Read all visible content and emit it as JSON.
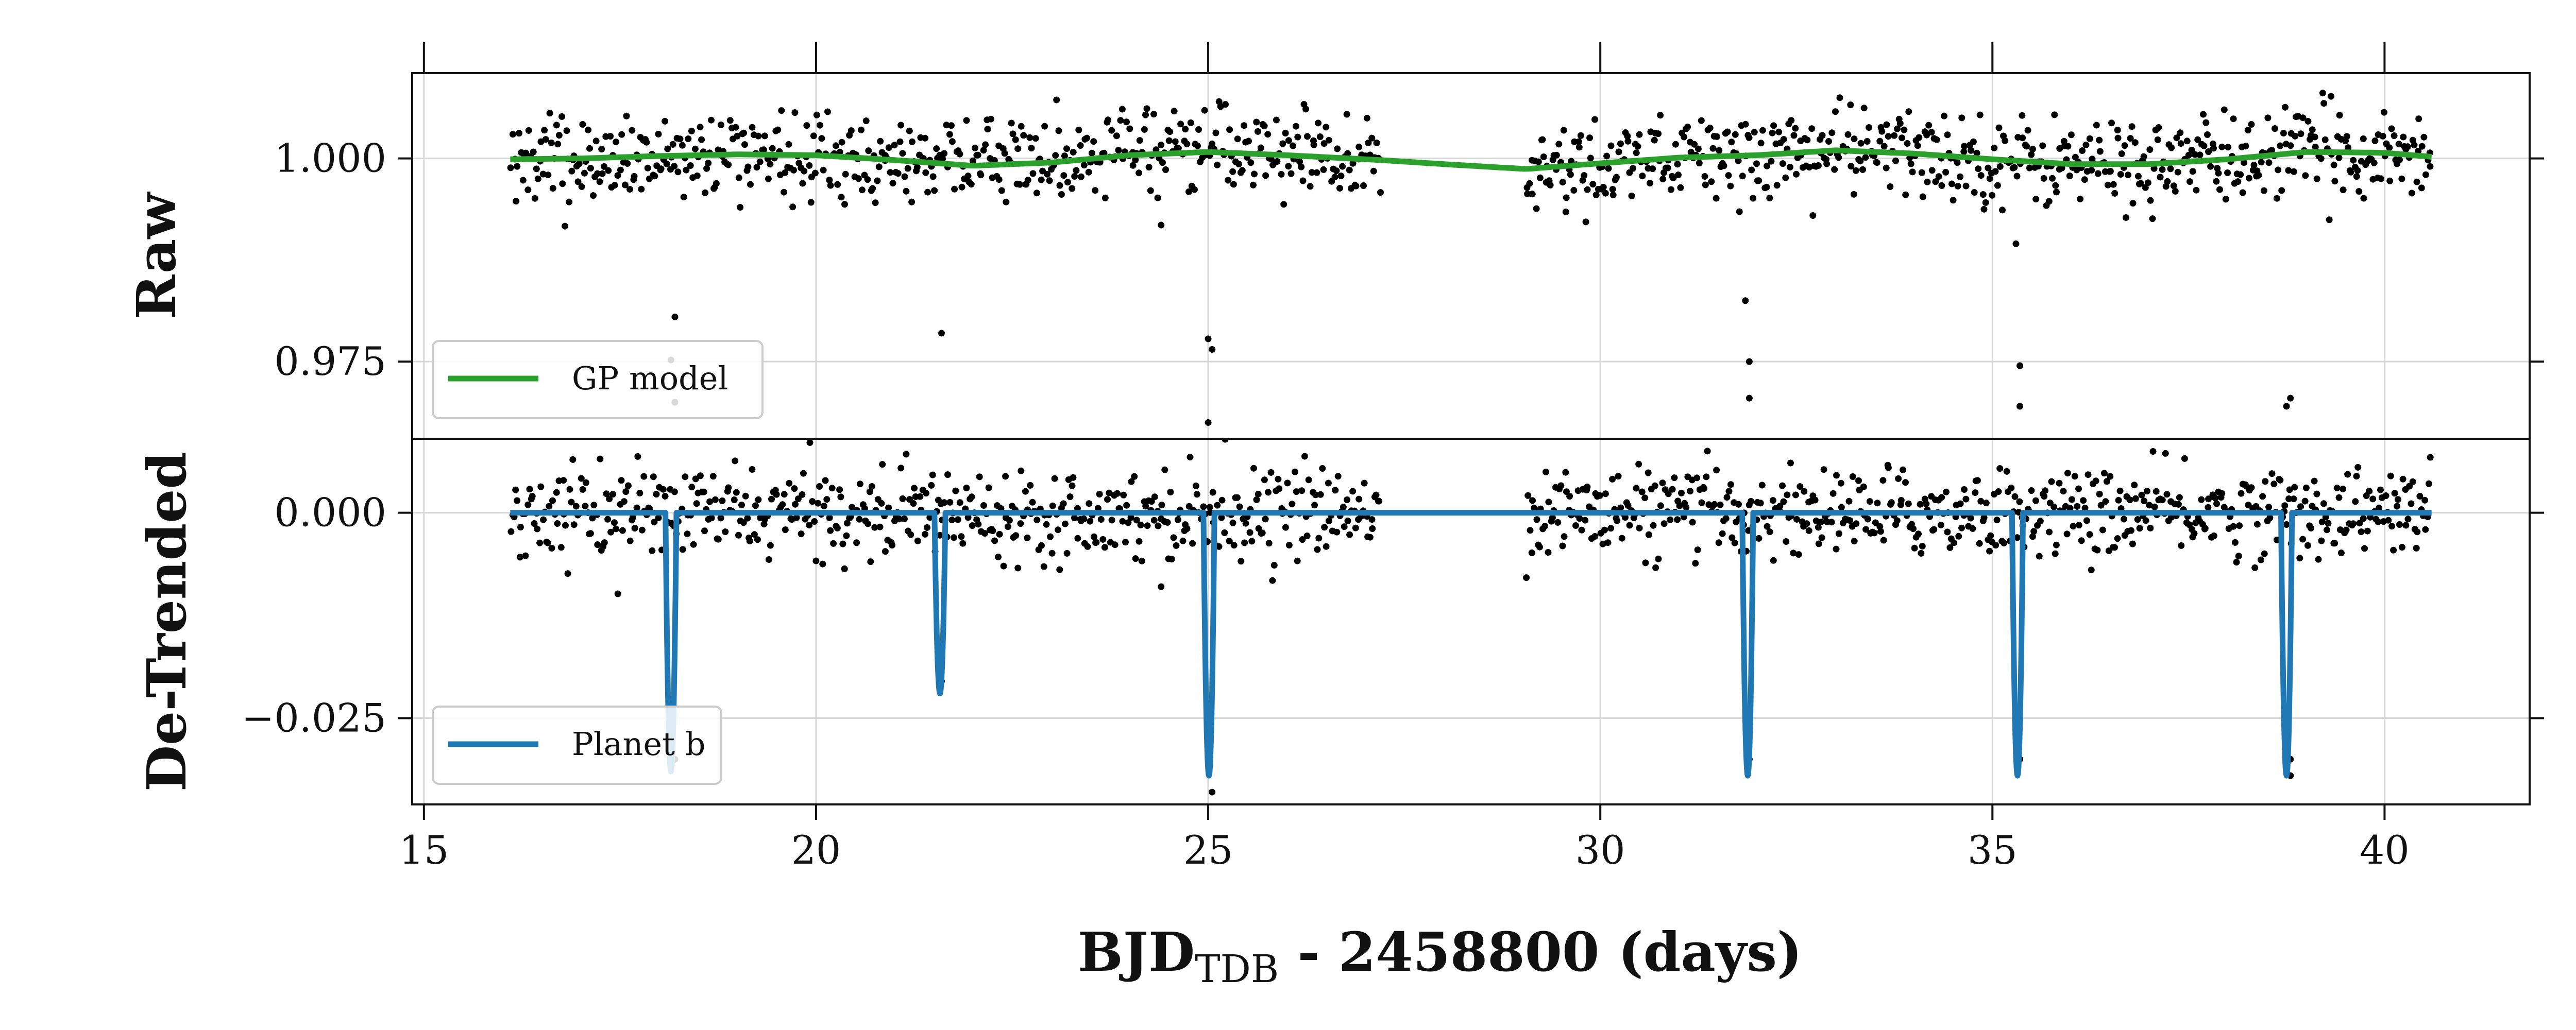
{
  "chart_data": [
    {
      "type": "scatter",
      "panel": "raw",
      "ylabel": "Raw",
      "xlim": [
        14.85,
        41.85
      ],
      "ylim": [
        0.9655,
        1.0105
      ],
      "yticks": [
        0.975,
        1.0
      ],
      "ytick_labels": [
        "0.975",
        "1.000"
      ],
      "xticks": [
        15,
        20,
        25,
        30,
        35,
        40
      ],
      "grid": true,
      "legend_position": "lower-left",
      "series": [
        {
          "name": "",
          "kind": "scatter",
          "color": "#000000",
          "segments": [
            {
              "x_start": 16.1,
              "x_end": 27.2,
              "n": 520,
              "sigma": 0.0037
            },
            {
              "x_start": 29.05,
              "x_end": 40.6,
              "n": 560,
              "sigma": 0.0037
            }
          ],
          "outliers": [
            {
              "x": 18.2,
              "y": 0.9805
            },
            {
              "x": 18.15,
              "y": 0.9752
            },
            {
              "x": 18.2,
              "y": 0.97
            },
            {
              "x": 21.6,
              "y": 0.9785
            },
            {
              "x": 24.4,
              "y": 0.9918
            },
            {
              "x": 25.0,
              "y": 0.9778
            },
            {
              "x": 25.05,
              "y": 0.9765
            },
            {
              "x": 25.0,
              "y": 0.9675
            },
            {
              "x": 31.85,
              "y": 0.9825
            },
            {
              "x": 31.9,
              "y": 0.975
            },
            {
              "x": 31.9,
              "y": 0.9705
            },
            {
              "x": 35.3,
              "y": 0.9895
            },
            {
              "x": 35.35,
              "y": 0.9745
            },
            {
              "x": 35.35,
              "y": 0.9695
            },
            {
              "x": 38.8,
              "y": 0.9705
            },
            {
              "x": 38.75,
              "y": 0.9695
            }
          ]
        },
        {
          "name": "GP model",
          "kind": "line",
          "color": "#2ca02c",
          "x": [
            16.1,
            17.0,
            18.0,
            19.0,
            20.0,
            21.0,
            22.0,
            23.0,
            24.0,
            25.0,
            26.0,
            27.2,
            28.0,
            29.05,
            30.0,
            31.0,
            32.0,
            33.0,
            34.0,
            35.0,
            36.0,
            37.0,
            38.0,
            39.0,
            40.0,
            40.6
          ],
          "y": [
            0.9999,
            1.0,
            1.0003,
            1.0005,
            1.0004,
            0.9998,
            0.9991,
            0.9995,
            1.0004,
            1.0008,
            1.0004,
            0.9998,
            0.9993,
            0.9987,
            0.9994,
            1.0001,
            1.0004,
            1.001,
            1.0006,
            0.9999,
            0.9993,
            0.9993,
            0.9999,
            1.0008,
            1.0007,
            1.0002
          ]
        }
      ]
    },
    {
      "type": "scatter",
      "panel": "detrended",
      "ylabel": "De-Trended",
      "xlabel": "BJD",
      "xlabel_sub": "TDB",
      "xlabel_rest": " - 2458800 (days)",
      "xlim": [
        14.85,
        41.85
      ],
      "ylim": [
        -0.0355,
        0.009
      ],
      "yticks": [
        -0.025,
        0.0
      ],
      "ytick_labels": [
        "−0.025",
        "0.000"
      ],
      "xticks": [
        15,
        20,
        25,
        30,
        35,
        40
      ],
      "xtick_labels": [
        "15",
        "20",
        "25",
        "30",
        "35",
        "40"
      ],
      "grid": true,
      "legend_position": "lower-left",
      "series": [
        {
          "name": "",
          "kind": "scatter",
          "color": "#000000",
          "segments": [
            {
              "x_start": 16.1,
              "x_end": 27.2,
              "n": 520,
              "sigma": 0.0035
            },
            {
              "x_start": 29.05,
              "x_end": 40.6,
              "n": 560,
              "sigma": 0.0035
            }
          ],
          "outliers": [
            {
              "x": 18.2,
              "y": -0.03
            },
            {
              "x": 21.6,
              "y": -0.0205
            },
            {
              "x": 24.4,
              "y": -0.009
            },
            {
              "x": 25.0,
              "y": -0.03
            },
            {
              "x": 25.05,
              "y": -0.034
            },
            {
              "x": 31.9,
              "y": -0.03
            },
            {
              "x": 35.35,
              "y": -0.03
            },
            {
              "x": 38.8,
              "y": -0.03
            },
            {
              "x": 38.8,
              "y": -0.032
            }
          ]
        },
        {
          "name": "Planet b",
          "kind": "transit-line",
          "color": "#1f77b4",
          "x_range": [
            16.1,
            40.6
          ],
          "baseline": 0.0,
          "transits": [
            {
              "t0": 18.15,
              "depth": 0.0315
            },
            {
              "t0": 21.58,
              "depth": 0.022
            },
            {
              "t0": 25.01,
              "depth": 0.032
            },
            {
              "t0": 31.88,
              "depth": 0.032
            },
            {
              "t0": 35.32,
              "depth": 0.032
            },
            {
              "t0": 38.75,
              "depth": 0.032
            }
          ],
          "transit_halfwidth": 0.07
        }
      ]
    }
  ]
}
